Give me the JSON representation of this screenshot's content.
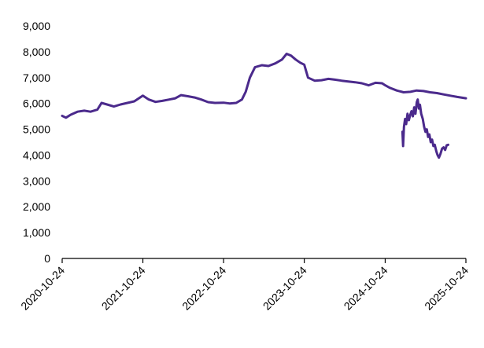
{
  "chart_data": {
    "type": "line",
    "title": "",
    "xlabel": "",
    "ylabel": "",
    "ylim": [
      0,
      9000
    ],
    "xlim": [
      "2020-10-24",
      "2025-10-24"
    ],
    "yticks": [
      {
        "value": 0,
        "label": "0"
      },
      {
        "value": 1000,
        "label": "1,000"
      },
      {
        "value": 2000,
        "label": "2,000"
      },
      {
        "value": 3000,
        "label": "3,000"
      },
      {
        "value": 4000,
        "label": "4,000"
      },
      {
        "value": 5000,
        "label": "5,000"
      },
      {
        "value": 6000,
        "label": "6,000"
      },
      {
        "value": 7000,
        "label": "7,000"
      },
      {
        "value": 8000,
        "label": "8,000"
      },
      {
        "value": 9000,
        "label": "9,000"
      }
    ],
    "xticks": [
      {
        "value": "2020-10-24",
        "label": "2020-10-24"
      },
      {
        "value": "2021-10-24",
        "label": "2021-10-24"
      },
      {
        "value": "2022-10-24",
        "label": "2022-10-24"
      },
      {
        "value": "2023-10-24",
        "label": "2023-10-24"
      },
      {
        "value": "2024-10-24",
        "label": "2024-10-24"
      },
      {
        "value": "2025-10-24",
        "label": "2025-10-24"
      }
    ],
    "grid": false,
    "legend": "none",
    "series": [
      {
        "color": "#4b2a8c",
        "points": [
          [
            "2020-10-24",
            5520
          ],
          [
            "2020-11-10",
            5450
          ],
          [
            "2020-12-01",
            5560
          ],
          [
            "2021-01-01",
            5680
          ],
          [
            "2021-02-01",
            5720
          ],
          [
            "2021-03-01",
            5680
          ],
          [
            "2021-04-01",
            5760
          ],
          [
            "2021-04-20",
            6020
          ],
          [
            "2021-05-15",
            5960
          ],
          [
            "2021-06-15",
            5880
          ],
          [
            "2021-07-15",
            5960
          ],
          [
            "2021-08-15",
            6020
          ],
          [
            "2021-09-15",
            6080
          ],
          [
            "2021-10-24",
            6300
          ],
          [
            "2021-11-20",
            6150
          ],
          [
            "2021-12-20",
            6060
          ],
          [
            "2022-01-20",
            6100
          ],
          [
            "2022-02-20",
            6150
          ],
          [
            "2022-03-20",
            6200
          ],
          [
            "2022-04-15",
            6320
          ],
          [
            "2022-05-15",
            6280
          ],
          [
            "2022-06-15",
            6230
          ],
          [
            "2022-07-15",
            6150
          ],
          [
            "2022-08-15",
            6050
          ],
          [
            "2022-09-15",
            6020
          ],
          [
            "2022-10-24",
            6030
          ],
          [
            "2022-11-20",
            6000
          ],
          [
            "2022-12-20",
            6020
          ],
          [
            "2023-01-15",
            6150
          ],
          [
            "2023-02-01",
            6450
          ],
          [
            "2023-02-20",
            7000
          ],
          [
            "2023-03-15",
            7400
          ],
          [
            "2023-04-15",
            7480
          ],
          [
            "2023-05-15",
            7450
          ],
          [
            "2023-06-15",
            7550
          ],
          [
            "2023-07-15",
            7700
          ],
          [
            "2023-08-05",
            7920
          ],
          [
            "2023-08-25",
            7850
          ],
          [
            "2023-09-15",
            7700
          ],
          [
            "2023-10-05",
            7580
          ],
          [
            "2023-10-24",
            7500
          ],
          [
            "2023-11-10",
            7000
          ],
          [
            "2023-12-10",
            6880
          ],
          [
            "2024-01-10",
            6900
          ],
          [
            "2024-02-10",
            6950
          ],
          [
            "2024-03-10",
            6920
          ],
          [
            "2024-04-10",
            6880
          ],
          [
            "2024-05-10",
            6850
          ],
          [
            "2024-06-10",
            6820
          ],
          [
            "2024-07-10",
            6780
          ],
          [
            "2024-08-10",
            6700
          ],
          [
            "2024-09-10",
            6800
          ],
          [
            "2024-10-10",
            6780
          ],
          [
            "2024-10-24",
            6700
          ],
          [
            "2024-11-15",
            6600
          ],
          [
            "2024-12-15",
            6500
          ],
          [
            "2025-01-15",
            6430
          ],
          [
            "2025-02-15",
            6450
          ],
          [
            "2025-03-15",
            6500
          ],
          [
            "2025-04-15",
            6480
          ],
          [
            "2025-05-15",
            6430
          ],
          [
            "2025-06-15",
            6400
          ],
          [
            "2025-07-15",
            6350
          ],
          [
            "2025-08-15",
            6300
          ],
          [
            "2025-09-15",
            6250
          ],
          [
            "2025-10-24",
            6200
          ]
        ]
      },
      {
        "color": "#4b2a8c",
        "points": [
          [
            "2025-01-10",
            4900
          ],
          [
            "2025-01-13",
            4350
          ],
          [
            "2025-01-17",
            5100
          ],
          [
            "2025-01-22",
            5400
          ],
          [
            "2025-01-27",
            5200
          ],
          [
            "2025-02-02",
            5600
          ],
          [
            "2025-02-08",
            5350
          ],
          [
            "2025-02-14",
            5550
          ],
          [
            "2025-02-20",
            5700
          ],
          [
            "2025-02-26",
            5500
          ],
          [
            "2025-03-04",
            5850
          ],
          [
            "2025-03-10",
            5600
          ],
          [
            "2025-03-16",
            6050
          ],
          [
            "2025-03-20",
            6150
          ],
          [
            "2025-03-25",
            5800
          ],
          [
            "2025-03-30",
            5950
          ],
          [
            "2025-04-05",
            5600
          ],
          [
            "2025-04-12",
            5400
          ],
          [
            "2025-04-18",
            5100
          ],
          [
            "2025-04-24",
            4900
          ],
          [
            "2025-04-30",
            5000
          ],
          [
            "2025-05-06",
            4700
          ],
          [
            "2025-05-12",
            4800
          ],
          [
            "2025-05-18",
            4500
          ],
          [
            "2025-05-24",
            4600
          ],
          [
            "2025-05-30",
            4350
          ],
          [
            "2025-06-05",
            4400
          ],
          [
            "2025-06-12",
            4150
          ],
          [
            "2025-06-18",
            4000
          ],
          [
            "2025-06-24",
            3900
          ],
          [
            "2025-07-01",
            4050
          ],
          [
            "2025-07-08",
            4250
          ],
          [
            "2025-07-15",
            4300
          ],
          [
            "2025-07-22",
            4200
          ],
          [
            "2025-07-29",
            4380
          ],
          [
            "2025-08-05",
            4400
          ]
        ]
      }
    ]
  }
}
